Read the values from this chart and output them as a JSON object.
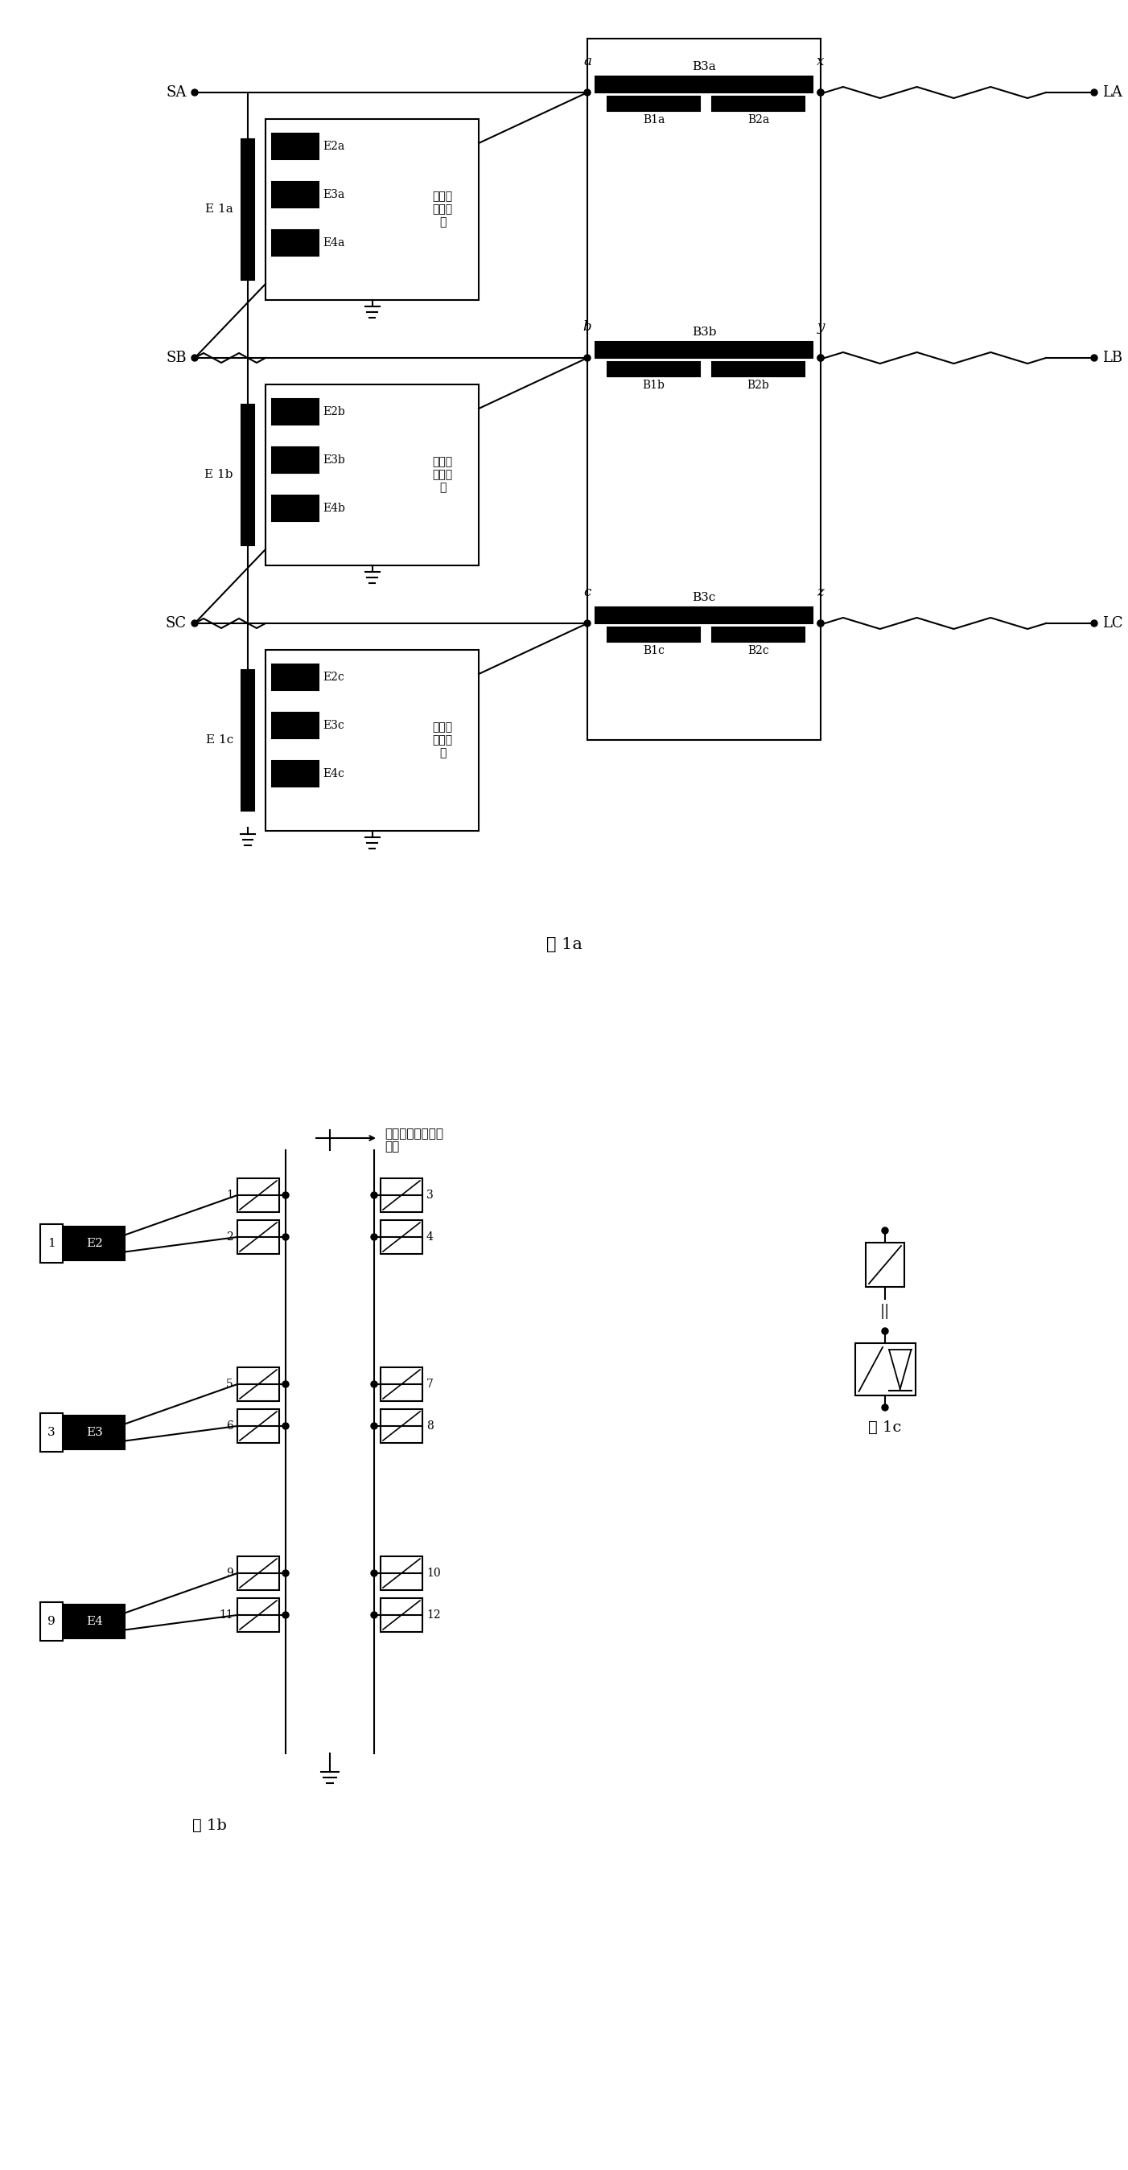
{
  "fig_width": 14.02,
  "fig_height": 26.98,
  "bg_color": "#ffffff",
  "line_color": "#000000",
  "fig1a_caption": "图 1a",
  "fig1b_caption": "图 1b",
  "fig1c_caption": "图 1c",
  "annotation_text": "与串联变压器副边\n相连"
}
